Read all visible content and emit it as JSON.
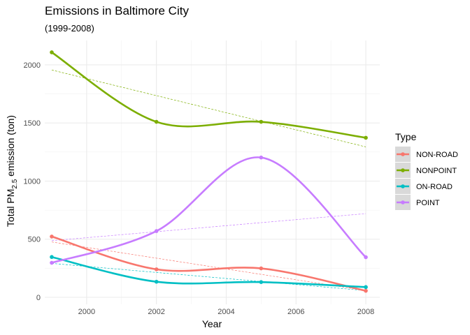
{
  "chart_data": {
    "type": "line",
    "title": "Emissions in Baltimore City",
    "subtitle": "(1999-2008)",
    "xlabel": "Year",
    "ylabel_parts": {
      "pre": "Total PM",
      "sub": "2.5",
      "post": " emission (ton)"
    },
    "x": [
      1999,
      2002,
      2005,
      2008
    ],
    "xlim": [
      1998.8,
      2008.4
    ],
    "ylim": [
      -60,
      2210
    ],
    "xticks": [
      2000,
      2002,
      2004,
      2006,
      2008
    ],
    "yticks": [
      0,
      500,
      1000,
      1500,
      2000
    ],
    "grid": true,
    "legend": {
      "title": "Type",
      "position": "right"
    },
    "series": [
      {
        "name": "NON-ROAD",
        "color": "#F8766D",
        "values": [
          523,
          241,
          249,
          56
        ]
      },
      {
        "name": "NONPOINT",
        "color": "#7CAE00",
        "values": [
          2108,
          1510,
          1510,
          1373
        ]
      },
      {
        "name": "ON-ROAD",
        "color": "#00BFC4",
        "values": [
          347,
          134,
          131,
          88
        ]
      },
      {
        "name": "POINT",
        "color": "#C77CFF",
        "values": [
          297,
          570,
          1203,
          345
        ]
      }
    ]
  }
}
